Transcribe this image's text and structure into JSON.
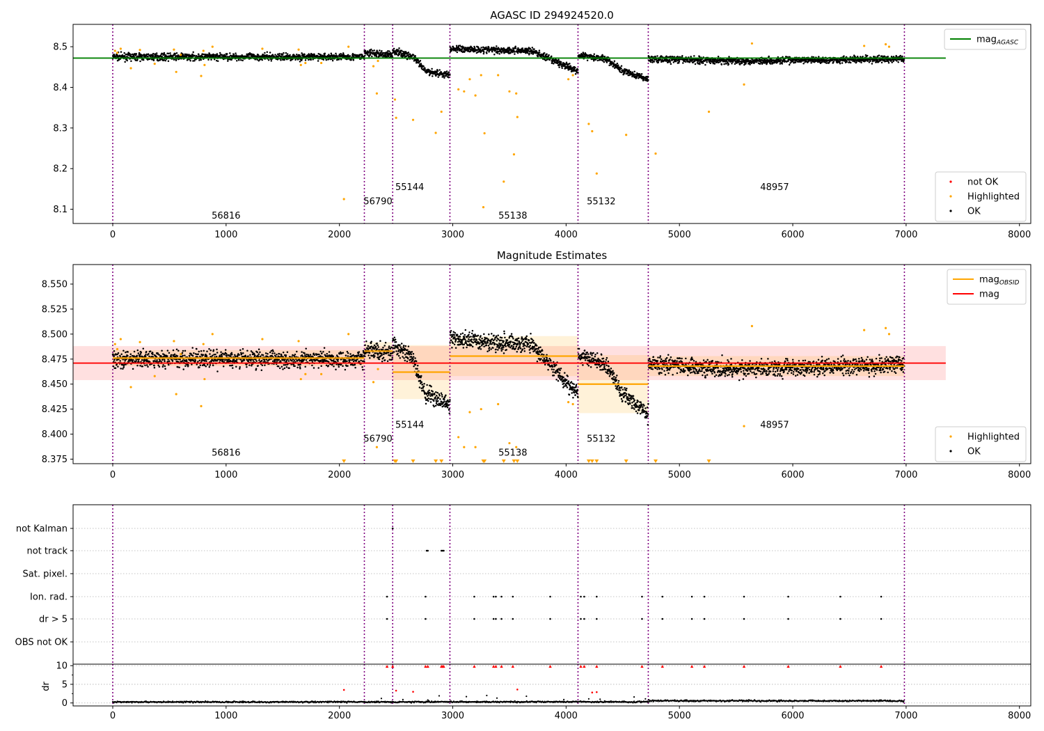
{
  "chart_data": [
    {
      "type": "scatter",
      "title": "AGASC ID 294924520.0",
      "xlim": [
        -350,
        8100
      ],
      "ylim": [
        8.065,
        8.555
      ],
      "xticks": [
        0,
        1000,
        2000,
        3000,
        4000,
        5000,
        6000,
        7000,
        8000
      ],
      "xtick_labels": [
        "0",
        "1000",
        "2000",
        "3000",
        "4000",
        "5000",
        "6000",
        "7000",
        "8000"
      ],
      "yticks": [
        8.1,
        8.2,
        8.3,
        8.4,
        8.5
      ],
      "ytick_labels": [
        "8.1",
        "8.2",
        "8.3",
        "8.4",
        "8.5"
      ],
      "grid": false,
      "legends": [
        {
          "placement": "top-right",
          "entries": [
            {
              "label": "mag",
              "sub": "AGASC",
              "color": "#008000",
              "kind": "line"
            }
          ]
        },
        {
          "placement": "bottom-right",
          "entries": [
            {
              "label": "not OK",
              "color": "#ff0000",
              "kind": "dot"
            },
            {
              "label": "Highlighted",
              "color": "#ffa500",
              "kind": "dot"
            },
            {
              "label": "OK",
              "color": "#000000",
              "kind": "dot"
            }
          ]
        }
      ],
      "agasc_mag": 8.472,
      "agasc_line_x": [
        -350,
        7350
      ],
      "obs_boundaries": [
        0,
        2220,
        2470,
        2975,
        4105,
        4725,
        6985
      ],
      "obs_labels": [
        {
          "text": "56816",
          "x": 1000,
          "y": 8.077
        },
        {
          "text": "56790",
          "x": 2340,
          "y": 8.112
        },
        {
          "text": "55144",
          "x": 2620,
          "y": 8.147
        },
        {
          "text": "55138",
          "x": 3530,
          "y": 8.077
        },
        {
          "text": "55132",
          "x": 4310,
          "y": 8.112
        },
        {
          "text": "48957",
          "x": 5840,
          "y": 8.147
        }
      ],
      "ok_trend": [
        [
          0,
          8.475
        ],
        [
          2220,
          8.475
        ],
        [
          2221,
          8.485
        ],
        [
          2470,
          8.48
        ],
        [
          2471,
          8.49
        ],
        [
          2650,
          8.475
        ],
        [
          2760,
          8.44
        ],
        [
          2975,
          8.43
        ],
        [
          2976,
          8.495
        ],
        [
          3700,
          8.49
        ],
        [
          3850,
          8.47
        ],
        [
          4000,
          8.452
        ],
        [
          4105,
          8.44
        ],
        [
          4106,
          8.48
        ],
        [
          4350,
          8.47
        ],
        [
          4500,
          8.44
        ],
        [
          4725,
          8.42
        ],
        [
          4726,
          8.47
        ],
        [
          5500,
          8.465
        ],
        [
          6985,
          8.47
        ]
      ],
      "ok_noise": 0.009,
      "highlighted_points": [
        [
          20,
          8.49
        ],
        [
          40,
          8.485
        ],
        [
          70,
          8.495
        ],
        [
          160,
          8.447
        ],
        [
          240,
          8.492
        ],
        [
          370,
          8.458
        ],
        [
          540,
          8.493
        ],
        [
          560,
          8.438
        ],
        [
          600,
          8.48
        ],
        [
          780,
          8.428
        ],
        [
          800,
          8.49
        ],
        [
          810,
          8.455
        ],
        [
          880,
          8.5
        ],
        [
          1320,
          8.495
        ],
        [
          1640,
          8.493
        ],
        [
          1660,
          8.455
        ],
        [
          1700,
          8.46
        ],
        [
          1840,
          8.46
        ],
        [
          2040,
          8.125
        ],
        [
          2080,
          8.5
        ],
        [
          2300,
          8.452
        ],
        [
          2330,
          8.385
        ],
        [
          2340,
          8.465
        ],
        [
          2490,
          8.37
        ],
        [
          2500,
          8.325
        ],
        [
          2650,
          8.32
        ],
        [
          2850,
          8.288
        ],
        [
          2900,
          8.34
        ],
        [
          3050,
          8.395
        ],
        [
          3100,
          8.39
        ],
        [
          3150,
          8.42
        ],
        [
          3200,
          8.38
        ],
        [
          3250,
          8.43
        ],
        [
          3270,
          8.105
        ],
        [
          3280,
          8.287
        ],
        [
          3400,
          8.43
        ],
        [
          3450,
          8.168
        ],
        [
          3500,
          8.39
        ],
        [
          3540,
          8.235
        ],
        [
          3560,
          8.385
        ],
        [
          3570,
          8.327
        ],
        [
          4020,
          8.42
        ],
        [
          4060,
          8.43
        ],
        [
          4200,
          8.31
        ],
        [
          4230,
          8.292
        ],
        [
          4270,
          8.188
        ],
        [
          4530,
          8.283
        ],
        [
          4790,
          8.237
        ],
        [
          5260,
          8.34
        ],
        [
          5570,
          8.407
        ],
        [
          5640,
          8.508
        ],
        [
          6630,
          8.502
        ],
        [
          6820,
          8.506
        ],
        [
          6850,
          8.5
        ]
      ],
      "not_ok_points": []
    },
    {
      "type": "scatter",
      "title": "Magnitude Estimates",
      "xlim": [
        -350,
        8100
      ],
      "ylim": [
        8.3705,
        8.5695
      ],
      "xticks": [
        0,
        1000,
        2000,
        3000,
        4000,
        5000,
        6000,
        7000,
        8000
      ],
      "xtick_labels": [
        "0",
        "1000",
        "2000",
        "3000",
        "4000",
        "5000",
        "6000",
        "7000",
        "8000"
      ],
      "yticks": [
        8.375,
        8.4,
        8.425,
        8.45,
        8.475,
        8.5,
        8.525,
        8.55
      ],
      "ytick_labels": [
        "8.375",
        "8.400",
        "8.425",
        "8.450",
        "8.475",
        "8.500",
        "8.525",
        "8.550"
      ],
      "grid": false,
      "legends": [
        {
          "placement": "top-right",
          "entries": [
            {
              "label": "mag",
              "sub": "OBSID",
              "color": "#ffa500",
              "kind": "line"
            },
            {
              "label": "mag",
              "sub": "",
              "color": "#ff0000",
              "kind": "line"
            }
          ]
        },
        {
          "placement": "bottom-right",
          "entries": [
            {
              "label": "Highlighted",
              "color": "#ffa500",
              "kind": "dot"
            },
            {
              "label": "OK",
              "color": "#000000",
              "kind": "dot"
            }
          ]
        }
      ],
      "mag": 8.471,
      "mag_band": [
        8.454,
        8.488
      ],
      "mag_line_x": [
        -350,
        7350
      ],
      "obsid_mags": [
        {
          "x0": 0,
          "x1": 2220,
          "mag": 8.476,
          "lo": 8.468,
          "hi": 8.484
        },
        {
          "x0": 2220,
          "x1": 2470,
          "mag": 8.483,
          "lo": 8.474,
          "hi": 8.492
        },
        {
          "x0": 2470,
          "x1": 2975,
          "mag": 8.462,
          "lo": 8.435,
          "hi": 8.489
        },
        {
          "x0": 2975,
          "x1": 4105,
          "mag": 8.478,
          "lo": 8.458,
          "hi": 8.498
        },
        {
          "x0": 4105,
          "x1": 4725,
          "mag": 8.45,
          "lo": 8.421,
          "hi": 8.479
        },
        {
          "x0": 4725,
          "x1": 6985,
          "mag": 8.468,
          "lo": 8.458,
          "hi": 8.478
        }
      ],
      "obs_boundaries": [
        0,
        2220,
        2470,
        2975,
        4105,
        4725,
        6985
      ],
      "obs_labels": [
        {
          "text": "56816",
          "x": 1000,
          "y": 8.3785
        },
        {
          "text": "56790",
          "x": 2340,
          "y": 8.3925
        },
        {
          "text": "55144",
          "x": 2620,
          "y": 8.4065
        },
        {
          "text": "55138",
          "x": 3530,
          "y": 8.3785
        },
        {
          "text": "55132",
          "x": 4310,
          "y": 8.3925
        },
        {
          "text": "48957",
          "x": 5840,
          "y": 8.4065
        }
      ],
      "ok_trend": [
        [
          0,
          8.475
        ],
        [
          2220,
          8.475
        ],
        [
          2221,
          8.485
        ],
        [
          2470,
          8.48
        ],
        [
          2471,
          8.49
        ],
        [
          2650,
          8.475
        ],
        [
          2760,
          8.44
        ],
        [
          2975,
          8.43
        ],
        [
          2976,
          8.495
        ],
        [
          3700,
          8.49
        ],
        [
          3850,
          8.47
        ],
        [
          4000,
          8.452
        ],
        [
          4105,
          8.44
        ],
        [
          4106,
          8.48
        ],
        [
          4350,
          8.47
        ],
        [
          4500,
          8.44
        ],
        [
          4725,
          8.42
        ],
        [
          4726,
          8.47
        ],
        [
          5500,
          8.465
        ],
        [
          6985,
          8.47
        ]
      ],
      "ok_noise": 0.009,
      "highlighted_points": [
        [
          20,
          8.49
        ],
        [
          40,
          8.485
        ],
        [
          70,
          8.495
        ],
        [
          160,
          8.447
        ],
        [
          240,
          8.492
        ],
        [
          370,
          8.458
        ],
        [
          540,
          8.493
        ],
        [
          560,
          8.44
        ],
        [
          600,
          8.48
        ],
        [
          780,
          8.428
        ],
        [
          800,
          8.49
        ],
        [
          810,
          8.455
        ],
        [
          880,
          8.5
        ],
        [
          1320,
          8.495
        ],
        [
          1640,
          8.493
        ],
        [
          1660,
          8.455
        ],
        [
          1700,
          8.46
        ],
        [
          1840,
          8.46
        ],
        [
          2080,
          8.5
        ],
        [
          2300,
          8.452
        ],
        [
          2330,
          8.387
        ],
        [
          2340,
          8.465
        ],
        [
          3050,
          8.397
        ],
        [
          3100,
          8.387
        ],
        [
          3150,
          8.422
        ],
        [
          3200,
          8.387
        ],
        [
          3250,
          8.425
        ],
        [
          3400,
          8.43
        ],
        [
          3500,
          8.391
        ],
        [
          3560,
          8.387
        ],
        [
          4020,
          8.432
        ],
        [
          4060,
          8.43
        ],
        [
          5570,
          8.408
        ],
        [
          5640,
          8.508
        ],
        [
          6630,
          8.504
        ],
        [
          6820,
          8.506
        ],
        [
          6850,
          8.5
        ]
      ],
      "clipped_markers": [
        2040,
        2490,
        2500,
        2650,
        2850,
        2900,
        3270,
        3280,
        3450,
        3540,
        3570,
        4200,
        4230,
        4270,
        4530,
        4790,
        5260
      ]
    },
    {
      "type": "scatter",
      "xlim": [
        -350,
        8100
      ],
      "xticks": [
        0,
        1000,
        2000,
        3000,
        4000,
        5000,
        6000,
        7000,
        8000
      ],
      "xtick_labels": [
        "0",
        "1000",
        "2000",
        "3000",
        "4000",
        "5000",
        "6000",
        "7000",
        "8000"
      ],
      "flag_rows": [
        "not Kalman",
        "not track",
        "Sat. pixel.",
        "Ion. rad.",
        "dr > 5",
        "OBS not OK"
      ],
      "flags": {
        "not Kalman": [
          2470
        ],
        "not track": [
          2770,
          2780,
          2900,
          2910,
          2920
        ],
        "Sat. pixel.": [],
        "Ion. rad.": [
          2420,
          2760,
          3190,
          3360,
          3380,
          3430,
          3530,
          3860,
          4130,
          4160,
          4270,
          4670,
          4850,
          5110,
          5220,
          5570,
          5960,
          6420,
          6780
        ],
        "dr > 5": [
          2420,
          2760,
          3190,
          3360,
          3380,
          3430,
          3530,
          3860,
          4130,
          4160,
          4270,
          4670,
          4850,
          5110,
          5220,
          5570,
          5960,
          6420,
          6780
        ],
        "OBS not OK": []
      },
      "dr_ylabel": "dr",
      "dr_yticks": [
        0,
        5,
        10
      ],
      "dr_ytick_labels": [
        "0",
        "5",
        "10"
      ],
      "dr_ylim": [
        -0.8,
        10.4
      ],
      "dr_clipped": [
        2420,
        2470,
        2760,
        2780,
        2900,
        2910,
        2920,
        3190,
        3360,
        3380,
        3430,
        3530,
        3860,
        4130,
        4160,
        4270,
        4670,
        4850,
        5110,
        5220,
        5570,
        5960,
        6420,
        6780
      ],
      "dr_highlighted": [
        [
          2040,
          3.5
        ],
        [
          2500,
          3.3
        ],
        [
          2650,
          3.0
        ],
        [
          3570,
          3.6
        ],
        [
          4230,
          2.8
        ],
        [
          4270,
          2.9
        ]
      ],
      "dr_ok_level": [
        [
          0,
          0.25
        ],
        [
          4725,
          0.3
        ],
        [
          4726,
          0.6
        ],
        [
          6985,
          0.55
        ]
      ],
      "obs_boundaries": [
        0,
        2220,
        2470,
        2975,
        4105,
        4725,
        6985
      ]
    }
  ]
}
